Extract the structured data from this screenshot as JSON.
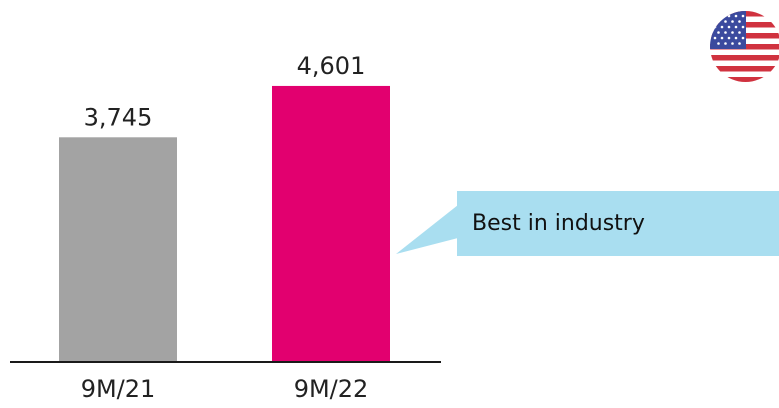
{
  "chart_data": {
    "type": "bar",
    "categories": [
      "9M/21",
      "9M/22"
    ],
    "values": [
      3745,
      4601
    ],
    "value_labels": [
      "3,745",
      "4,601"
    ],
    "bar_colors": [
      "#a3a3a3",
      "#e2006f"
    ],
    "title": "",
    "xlabel": "",
    "ylabel": "",
    "ylim": [
      0,
      5200
    ],
    "grid": false,
    "legend": "none"
  },
  "callout": {
    "text": "Best in industry",
    "background": "#a9def0"
  },
  "flag_icon": "us-flag-icon",
  "colors": {
    "axis": "#1a1a1a",
    "text": "#222222"
  }
}
